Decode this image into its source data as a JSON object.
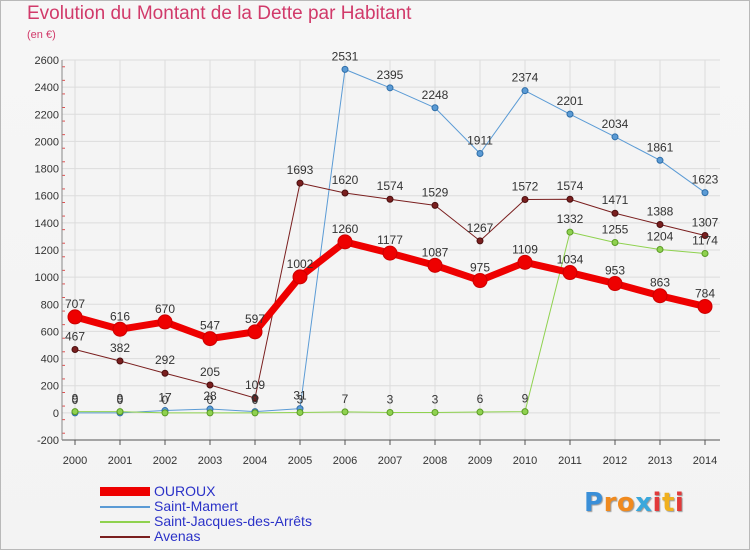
{
  "header": {
    "title": "Evolution du Montant de la Dette par Habitant",
    "unit": "(en €)"
  },
  "logo": {
    "letters": [
      "P",
      "r",
      "o",
      "x",
      "i",
      "t",
      "i"
    ],
    "colors": [
      "#3a8fd8",
      "#f08a1e",
      "#f08a1e",
      "#3aa8dc",
      "#e23a3a",
      "#f0b01e",
      "#e23a3a"
    ]
  },
  "chart_data": {
    "type": "line",
    "title": "Evolution du Montant de la Dette par Habitant",
    "ylabel": "(en €)",
    "xlabel": "",
    "x": [
      "2000",
      "2001",
      "2002",
      "2003",
      "2004",
      "2005",
      "2006",
      "2007",
      "2008",
      "2009",
      "2010",
      "2011",
      "2012",
      "2013",
      "2014"
    ],
    "ylim": [
      -200,
      2600
    ],
    "yticks": [
      -200,
      0,
      200,
      400,
      600,
      800,
      1000,
      1200,
      1400,
      1600,
      1800,
      2000,
      2200,
      2400,
      2600
    ],
    "grid": true,
    "legend_position": "bottom-left",
    "series": [
      {
        "name": "OUROUX",
        "color": "#ee0000",
        "values": [
          707,
          616,
          670,
          547,
          597,
          1002,
          1260,
          1177,
          1087,
          975,
          1109,
          1034,
          953,
          863,
          784
        ],
        "labels": [
          "707",
          "616",
          "670",
          "547",
          "597",
          "1002",
          "1260",
          "1177",
          "1087",
          "975",
          "1109",
          "1034",
          "953",
          "863",
          "784"
        ]
      },
      {
        "name": "Saint-Mamert",
        "color": "#5b9bd5",
        "values": [
          0,
          0,
          17,
          28,
          9,
          31,
          2531,
          2395,
          2248,
          1911,
          2374,
          2201,
          2034,
          1861,
          1623
        ],
        "labels": [
          "0",
          "0",
          "17",
          "28",
          "9",
          "31",
          "2531",
          "2395",
          "2248",
          "1911",
          "2374",
          "2201",
          "2034",
          "1861",
          "1623"
        ]
      },
      {
        "name": "Saint-Jacques-des-Arrêts",
        "color": "#8fd24f",
        "values": [
          9,
          9,
          0,
          0,
          0,
          3,
          7,
          3,
          3,
          6,
          9,
          1332,
          1255,
          1204,
          1174
        ],
        "labels": [
          "9",
          "9",
          "0",
          "0",
          "0",
          "3",
          "7",
          "3",
          "3",
          "6",
          "9",
          "1332",
          "1255",
          "1204",
          "1174"
        ]
      },
      {
        "name": "Avenas",
        "color": "#7a1f1f",
        "values": [
          467,
          382,
          292,
          205,
          109,
          1693,
          1620,
          1574,
          1529,
          1267,
          1572,
          1574,
          1471,
          1388,
          1307
        ],
        "labels": [
          "467",
          "382",
          "292",
          "205",
          "109",
          "1693",
          "1620",
          "1574",
          "1529",
          "1267",
          "1572",
          "1574",
          "1471",
          "1388",
          "1307"
        ]
      }
    ]
  }
}
